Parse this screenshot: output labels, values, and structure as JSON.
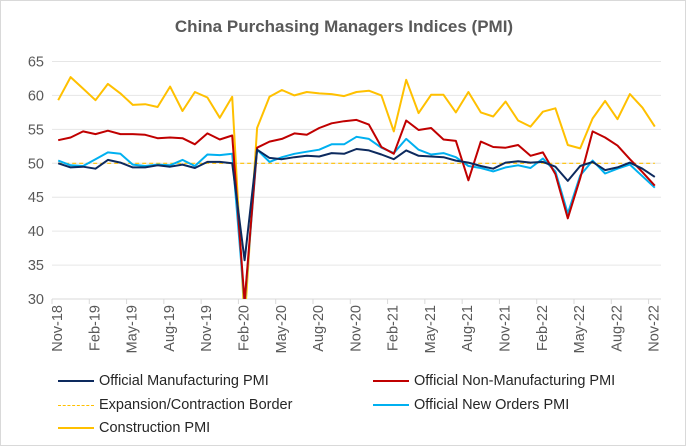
{
  "chart_data": {
    "type": "line",
    "title": "China Purchasing Managers Indices (PMI)",
    "xlabel": "",
    "ylabel": "",
    "ylim": [
      30,
      65
    ],
    "yticks": [
      30,
      35,
      40,
      45,
      50,
      55,
      60,
      65
    ],
    "grid": true,
    "legend_position": "bottom",
    "x": [
      "Nov-18",
      "Dec-18",
      "Jan-19",
      "Feb-19",
      "Mar-19",
      "Apr-19",
      "May-19",
      "Jun-19",
      "Jul-19",
      "Aug-19",
      "Sep-19",
      "Oct-19",
      "Nov-19",
      "Dec-19",
      "Jan-20",
      "Feb-20",
      "Mar-20",
      "Apr-20",
      "May-20",
      "Jun-20",
      "Jul-20",
      "Aug-20",
      "Sep-20",
      "Oct-20",
      "Nov-20",
      "Dec-20",
      "Jan-21",
      "Feb-21",
      "Mar-21",
      "Apr-21",
      "May-21",
      "Jun-21",
      "Jul-21",
      "Aug-21",
      "Sep-21",
      "Oct-21",
      "Nov-21",
      "Dec-21",
      "Jan-22",
      "Feb-22",
      "Mar-22",
      "Apr-22",
      "May-22",
      "Jun-22",
      "Jul-22",
      "Aug-22",
      "Sep-22",
      "Oct-22",
      "Nov-22"
    ],
    "xtick_labels": [
      "Nov-18",
      "Feb-19",
      "May-19",
      "Aug-19",
      "Nov-19",
      "Feb-20",
      "May-20",
      "Aug-20",
      "Nov-20",
      "Feb-21",
      "May-21",
      "Aug-21",
      "Nov-21",
      "Feb-22",
      "May-22",
      "Aug-22",
      "Nov-22"
    ],
    "series": [
      {
        "name": "Official Manufacturing PMI",
        "color": "#0d2a5e",
        "dash": false,
        "values": [
          50.0,
          49.4,
          49.5,
          49.2,
          50.5,
          50.1,
          49.4,
          49.4,
          49.7,
          49.5,
          49.8,
          49.3,
          50.2,
          50.2,
          50.0,
          35.7,
          52.0,
          50.8,
          50.6,
          50.9,
          51.1,
          51.0,
          51.5,
          51.4,
          52.1,
          51.9,
          51.3,
          50.6,
          51.9,
          51.1,
          51.0,
          50.9,
          50.4,
          50.1,
          49.6,
          49.2,
          50.1,
          50.3,
          50.1,
          50.2,
          49.5,
          47.4,
          49.6,
          50.2,
          49.0,
          49.4,
          50.1,
          49.2,
          48.0
        ]
      },
      {
        "name": "Official Non-Manufacturing PMI",
        "color": "#c00000",
        "dash": false,
        "values": [
          53.4,
          53.8,
          54.7,
          54.3,
          54.8,
          54.3,
          54.3,
          54.2,
          53.7,
          53.8,
          53.7,
          52.8,
          54.4,
          53.5,
          54.1,
          29.6,
          52.3,
          53.2,
          53.6,
          54.4,
          54.2,
          55.2,
          55.9,
          56.2,
          56.4,
          55.7,
          52.4,
          51.4,
          56.3,
          54.9,
          55.2,
          53.5,
          53.3,
          47.5,
          53.2,
          52.4,
          52.3,
          52.7,
          51.1,
          51.6,
          48.4,
          41.9,
          47.8,
          54.7,
          53.8,
          52.6,
          50.6,
          48.7,
          46.7
        ]
      },
      {
        "name": "Expansion/Contraction Border",
        "color": "#ffc000",
        "dash": true,
        "values": [
          50,
          50,
          50,
          50,
          50,
          50,
          50,
          50,
          50,
          50,
          50,
          50,
          50,
          50,
          50,
          50,
          50,
          50,
          50,
          50,
          50,
          50,
          50,
          50,
          50,
          50,
          50,
          50,
          50,
          50,
          50,
          50,
          50,
          50,
          50,
          50,
          50,
          50,
          50,
          50,
          50,
          50,
          50,
          50,
          50,
          50,
          50,
          50,
          50
        ]
      },
      {
        "name": "Official New Orders PMI",
        "color": "#00b0f0",
        "dash": false,
        "values": [
          50.4,
          49.7,
          49.6,
          50.6,
          51.6,
          51.4,
          49.8,
          49.6,
          49.8,
          49.7,
          50.5,
          49.6,
          51.3,
          51.2,
          51.4,
          29.3,
          52.0,
          50.2,
          50.9,
          51.4,
          51.7,
          52.0,
          52.8,
          52.8,
          53.9,
          53.6,
          52.3,
          51.5,
          53.6,
          52.0,
          51.3,
          51.5,
          50.9,
          49.6,
          49.3,
          48.8,
          49.4,
          49.7,
          49.3,
          50.7,
          48.8,
          42.6,
          48.2,
          50.4,
          48.5,
          49.2,
          49.8,
          48.1,
          46.4
        ]
      },
      {
        "name": "Construction PMI",
        "color": "#ffc000",
        "dash": false,
        "values": [
          59.3,
          62.7,
          61.0,
          59.3,
          61.7,
          60.3,
          58.6,
          58.7,
          58.3,
          61.3,
          57.7,
          60.5,
          59.7,
          56.7,
          59.8,
          26.6,
          55.2,
          59.8,
          60.8,
          60.0,
          60.5,
          60.3,
          60.2,
          59.9,
          60.5,
          60.7,
          60.0,
          54.7,
          62.3,
          57.4,
          60.1,
          60.1,
          57.5,
          60.5,
          57.5,
          56.9,
          59.1,
          56.3,
          55.4,
          57.6,
          58.1,
          52.7,
          52.2,
          56.6,
          59.2,
          56.5,
          60.2,
          58.2,
          55.4
        ]
      }
    ]
  }
}
